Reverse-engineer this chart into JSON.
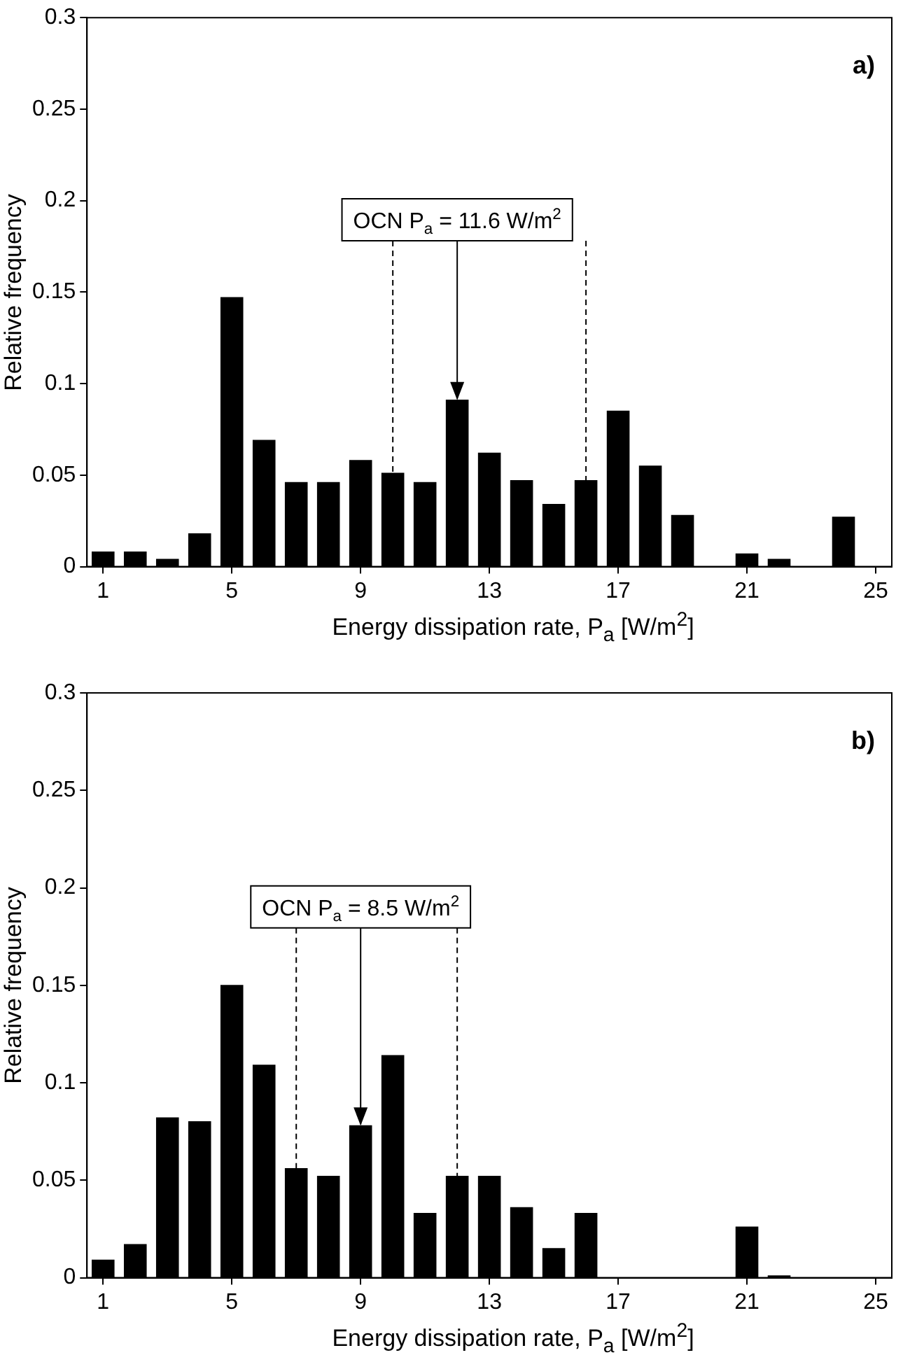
{
  "chart_data": [
    {
      "type": "bar",
      "xlabel": "Energy dissipation rate, P$_{a}$  [W/m$^{2}$]",
      "ylabel": "Relative frequency",
      "x": [
        1,
        2,
        3,
        4,
        5,
        6,
        7,
        8,
        9,
        10,
        11,
        12,
        13,
        14,
        15,
        16,
        17,
        18,
        19,
        20,
        21,
        22,
        23,
        24,
        25
      ],
      "values": [
        0.008,
        0.008,
        0.004,
        0.018,
        0.147,
        0.069,
        0.046,
        0.046,
        0.058,
        0.051,
        0.046,
        0.091,
        0.062,
        0.047,
        0.034,
        0.047,
        0.085,
        0.055,
        0.028,
        0,
        0.007,
        0.004,
        0,
        0.027,
        0
      ],
      "color": "#000000",
      "xlim": [
        0.5,
        25.5
      ],
      "xticks": [
        1,
        5,
        9,
        13,
        17,
        21,
        25
      ],
      "ylim": [
        0,
        0.3
      ],
      "yticks": [
        0,
        0.05,
        0.1,
        0.15,
        0.2,
        0.25,
        0.3
      ],
      "grid": false,
      "legend": false,
      "ref_lines": [
        {
          "axis": "x",
          "value": 10,
          "line_style": "dashed"
        },
        {
          "axis": "x",
          "value": 16,
          "line_style": "dashed"
        }
      ],
      "annotations": [
        {
          "text": "OCN P$_{a}$ = 11.6 W/m$^{2}$",
          "x": 12,
          "y": 0.091
        },
        "a)"
      ]
    },
    {
      "type": "bar",
      "xlabel": "Energy dissipation rate, P$_{a}$  [W/m$^{2}$]",
      "ylabel": "Relative frequency",
      "x": [
        1,
        2,
        3,
        4,
        5,
        6,
        7,
        8,
        9,
        10,
        11,
        12,
        13,
        14,
        15,
        16,
        17,
        18,
        19,
        20,
        21,
        22,
        23,
        24,
        25
      ],
      "values": [
        0.009,
        0.017,
        0.082,
        0.08,
        0.15,
        0.109,
        0.056,
        0.052,
        0.078,
        0.114,
        0.033,
        0.052,
        0.052,
        0.036,
        0.015,
        0.033,
        0,
        0,
        0,
        0,
        0.026,
        0.001,
        0,
        0,
        0
      ],
      "color": "#000000",
      "xlim": [
        0.5,
        25.5
      ],
      "xticks": [
        1,
        5,
        9,
        13,
        17,
        21,
        25
      ],
      "ylim": [
        0,
        0.3
      ],
      "yticks": [
        0,
        0.05,
        0.1,
        0.15,
        0.2,
        0.25,
        0.3
      ],
      "grid": false,
      "legend": false,
      "ref_lines": [
        {
          "axis": "x",
          "value": 7,
          "line_style": "dashed"
        },
        {
          "axis": "x",
          "value": 12,
          "line_style": "dashed"
        }
      ],
      "annotations": [
        {
          "text": "OCN P$_{a}$ = 8.5 W/m$^{2}$",
          "x": 9,
          "y": 0.078
        },
        "b)"
      ]
    }
  ]
}
